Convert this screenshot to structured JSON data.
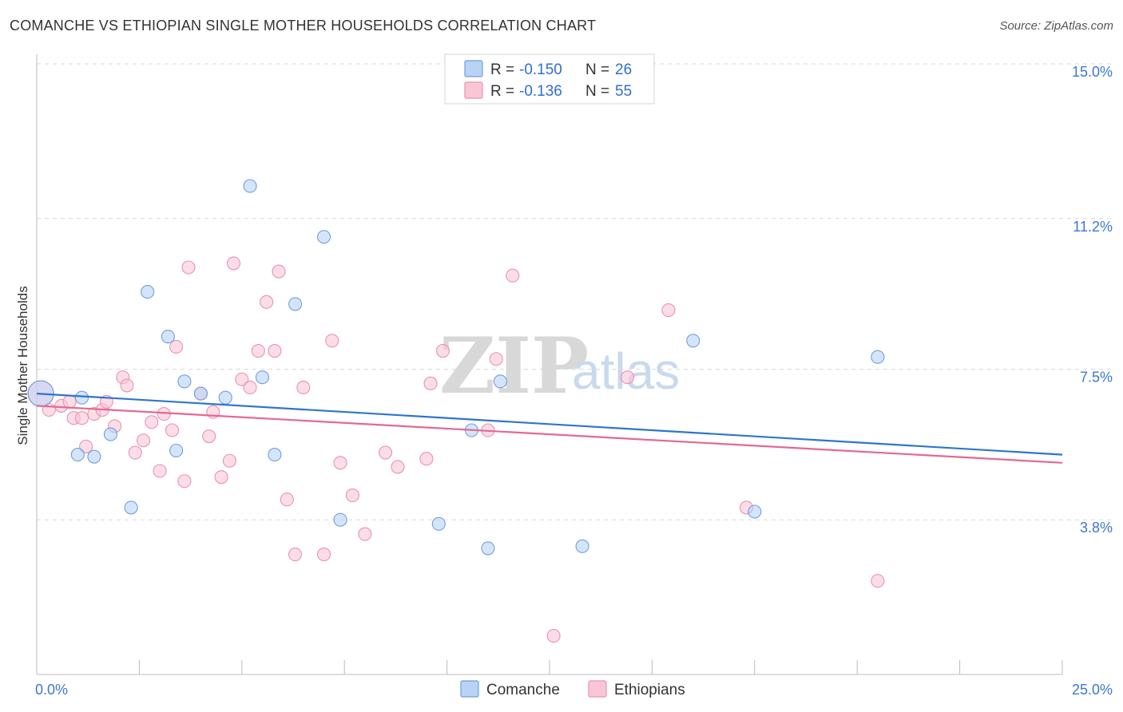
{
  "title": "COMANCHE VS ETHIOPIAN SINGLE MOTHER HOUSEHOLDS CORRELATION CHART",
  "source": "Source: ZipAtlas.com",
  "watermark": {
    "zip": "ZIP",
    "atlas": "atlas"
  },
  "legend": {
    "rows": [
      {
        "r_label": "R =",
        "r_value": "-0.150",
        "n_label": "N =",
        "n_value": "26"
      },
      {
        "r_label": "R =",
        "r_value": "-0.136",
        "n_label": "N =",
        "n_value": "55"
      }
    ]
  },
  "bottom_legend": [
    "Comanche",
    "Ethiopians"
  ],
  "colors": {
    "comanche_fill": "#b9d3f5",
    "comanche_stroke": "#6d9fe0",
    "comanche_line": "#2f74d0",
    "ethiopian_fill": "#f9c6d6",
    "ethiopian_stroke": "#ea92b0",
    "ethiopian_line": "#e46894",
    "grid": "#d9d9d9",
    "tick_label": "#3b78d0"
  },
  "chart_data": {
    "type": "scatter",
    "title": "COMANCHE VS ETHIOPIAN SINGLE MOTHER HOUSEHOLDS CORRELATION CHART",
    "xlabel": "",
    "ylabel": "Single Mother Households",
    "xlim": [
      0,
      25
    ],
    "ylim": [
      0,
      15
    ],
    "x_tick_labels": [
      "0.0%",
      "25.0%"
    ],
    "y_ticks": [
      3.8,
      7.5,
      11.2,
      15.0
    ],
    "y_tick_labels": [
      "3.8%",
      "7.5%",
      "11.2%",
      "15.0%"
    ],
    "grid": true,
    "series": [
      {
        "name": "Comanche",
        "r": -0.15,
        "n": 26,
        "trend": {
          "x": [
            0,
            25
          ],
          "y": [
            6.9,
            5.4
          ]
        },
        "points": [
          {
            "x": 0.1,
            "y": 6.9
          },
          {
            "x": 1.1,
            "y": 6.8
          },
          {
            "x": 1.0,
            "y": 5.4
          },
          {
            "x": 1.4,
            "y": 5.35
          },
          {
            "x": 1.8,
            "y": 5.9
          },
          {
            "x": 2.3,
            "y": 4.1
          },
          {
            "x": 2.7,
            "y": 9.4
          },
          {
            "x": 3.2,
            "y": 8.3
          },
          {
            "x": 3.4,
            "y": 5.5
          },
          {
            "x": 3.6,
            "y": 7.2
          },
          {
            "x": 4.0,
            "y": 6.9
          },
          {
            "x": 4.6,
            "y": 6.8
          },
          {
            "x": 5.2,
            "y": 12.0
          },
          {
            "x": 5.5,
            "y": 7.3
          },
          {
            "x": 5.8,
            "y": 5.4
          },
          {
            "x": 6.3,
            "y": 9.1
          },
          {
            "x": 7.0,
            "y": 10.75
          },
          {
            "x": 7.4,
            "y": 3.8
          },
          {
            "x": 9.8,
            "y": 3.7
          },
          {
            "x": 10.6,
            "y": 6.0
          },
          {
            "x": 11.0,
            "y": 3.1
          },
          {
            "x": 11.3,
            "y": 7.2
          },
          {
            "x": 13.3,
            "y": 3.15
          },
          {
            "x": 16.0,
            "y": 8.2
          },
          {
            "x": 17.5,
            "y": 4.0
          },
          {
            "x": 20.5,
            "y": 7.8
          }
        ]
      },
      {
        "name": "Ethiopians",
        "r": -0.136,
        "n": 55,
        "trend": {
          "x": [
            0,
            25
          ],
          "y": [
            6.6,
            5.2
          ]
        },
        "points": [
          {
            "x": 0.1,
            "y": 6.9
          },
          {
            "x": 0.3,
            "y": 6.5
          },
          {
            "x": 0.6,
            "y": 6.6
          },
          {
            "x": 0.8,
            "y": 6.7
          },
          {
            "x": 0.9,
            "y": 6.3
          },
          {
            "x": 1.1,
            "y": 6.3
          },
          {
            "x": 1.2,
            "y": 5.6
          },
          {
            "x": 1.4,
            "y": 6.4
          },
          {
            "x": 1.6,
            "y": 6.5
          },
          {
            "x": 1.7,
            "y": 6.7
          },
          {
            "x": 1.9,
            "y": 6.1
          },
          {
            "x": 2.1,
            "y": 7.3
          },
          {
            "x": 2.2,
            "y": 7.1
          },
          {
            "x": 2.4,
            "y": 5.45
          },
          {
            "x": 2.6,
            "y": 5.75
          },
          {
            "x": 2.8,
            "y": 6.2
          },
          {
            "x": 3.0,
            "y": 5.0
          },
          {
            "x": 3.1,
            "y": 6.4
          },
          {
            "x": 3.3,
            "y": 6.0
          },
          {
            "x": 3.4,
            "y": 8.05
          },
          {
            "x": 3.6,
            "y": 4.75
          },
          {
            "x": 3.7,
            "y": 10.0
          },
          {
            "x": 4.0,
            "y": 6.9
          },
          {
            "x": 4.2,
            "y": 5.85
          },
          {
            "x": 4.3,
            "y": 6.45
          },
          {
            "x": 4.5,
            "y": 4.85
          },
          {
            "x": 4.7,
            "y": 5.25
          },
          {
            "x": 4.8,
            "y": 10.1
          },
          {
            "x": 5.0,
            "y": 7.25
          },
          {
            "x": 5.2,
            "y": 7.05
          },
          {
            "x": 5.4,
            "y": 7.95
          },
          {
            "x": 5.6,
            "y": 9.15
          },
          {
            "x": 5.8,
            "y": 7.95
          },
          {
            "x": 5.9,
            "y": 9.9
          },
          {
            "x": 6.1,
            "y": 4.3
          },
          {
            "x": 6.3,
            "y": 2.95
          },
          {
            "x": 6.5,
            "y": 7.05
          },
          {
            "x": 7.0,
            "y": 2.95
          },
          {
            "x": 7.2,
            "y": 8.2
          },
          {
            "x": 7.4,
            "y": 5.2
          },
          {
            "x": 7.7,
            "y": 4.4
          },
          {
            "x": 8.0,
            "y": 3.45
          },
          {
            "x": 8.5,
            "y": 5.45
          },
          {
            "x": 8.8,
            "y": 5.1
          },
          {
            "x": 9.5,
            "y": 5.3
          },
          {
            "x": 9.6,
            "y": 7.15
          },
          {
            "x": 9.9,
            "y": 7.95
          },
          {
            "x": 11.0,
            "y": 6.0
          },
          {
            "x": 11.2,
            "y": 7.75
          },
          {
            "x": 11.6,
            "y": 9.8
          },
          {
            "x": 12.6,
            "y": 0.95
          },
          {
            "x": 14.4,
            "y": 7.3
          },
          {
            "x": 15.4,
            "y": 8.95
          },
          {
            "x": 17.3,
            "y": 4.1
          },
          {
            "x": 20.5,
            "y": 2.3
          }
        ]
      }
    ]
  }
}
